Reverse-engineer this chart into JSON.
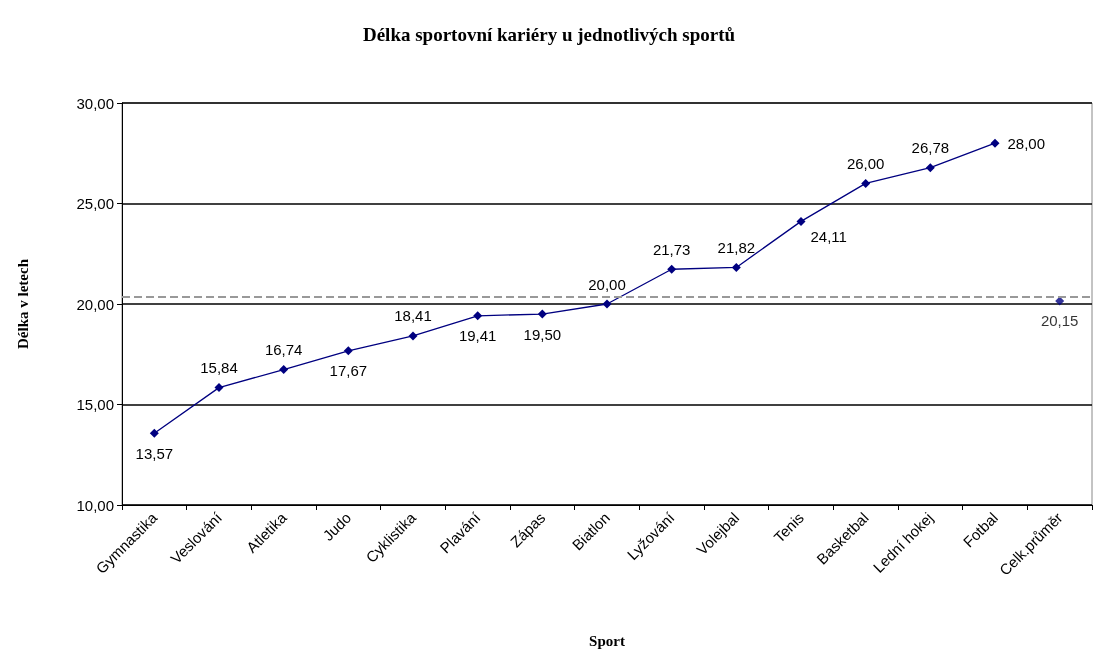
{
  "chart_data": {
    "type": "line",
    "title": "Délka sportovní kariéry u jednotlivých sportů",
    "xlabel": "Sport",
    "ylabel": "Délka v letech",
    "categories": [
      "Gymnastika",
      "Veslování",
      "Atletika",
      "Judo",
      "Cyklistika",
      "Plavání",
      "Zápas",
      "Biatlon",
      "Lyžování",
      "Volejbal",
      "Tenis",
      "Basketbal",
      "Lední hokej",
      "Fotbal",
      "Celk.průměr"
    ],
    "series": [
      {
        "color": "#000080",
        "values": [
          13.57,
          15.84,
          16.74,
          17.67,
          18.41,
          19.41,
          19.5,
          20.0,
          21.73,
          21.82,
          24.11,
          26.0,
          26.78,
          28.0,
          null
        ],
        "value_labels": [
          "13,57",
          "15,84",
          "16,74",
          "17,67",
          "18,41",
          "19,41",
          "19,50",
          "20,00",
          "21,73",
          "21,82",
          "24,11",
          "26,00",
          "26,78",
          "28,00",
          null
        ]
      },
      {
        "type": "scatter",
        "color": "#000080",
        "values": [
          null,
          null,
          null,
          null,
          null,
          null,
          null,
          null,
          null,
          null,
          null,
          null,
          null,
          null,
          20.15
        ],
        "value_labels": [
          null,
          null,
          null,
          null,
          null,
          null,
          null,
          null,
          null,
          null,
          null,
          null,
          null,
          null,
          "20,15"
        ]
      }
    ],
    "ylim": [
      10,
      30
    ],
    "yticks": [
      {
        "value": 10,
        "label": "10,00"
      },
      {
        "value": 15,
        "label": "15,00"
      },
      {
        "value": 20,
        "label": "20,00"
      },
      {
        "value": 25,
        "label": "25,00"
      },
      {
        "value": 30,
        "label": "30,00"
      }
    ],
    "ref_lines": [
      {
        "axis": "y",
        "value": 20.35,
        "color": "#999999",
        "line_style": "dashed"
      }
    ],
    "grid": "y",
    "marker": "diamond",
    "line_style": "solid"
  }
}
